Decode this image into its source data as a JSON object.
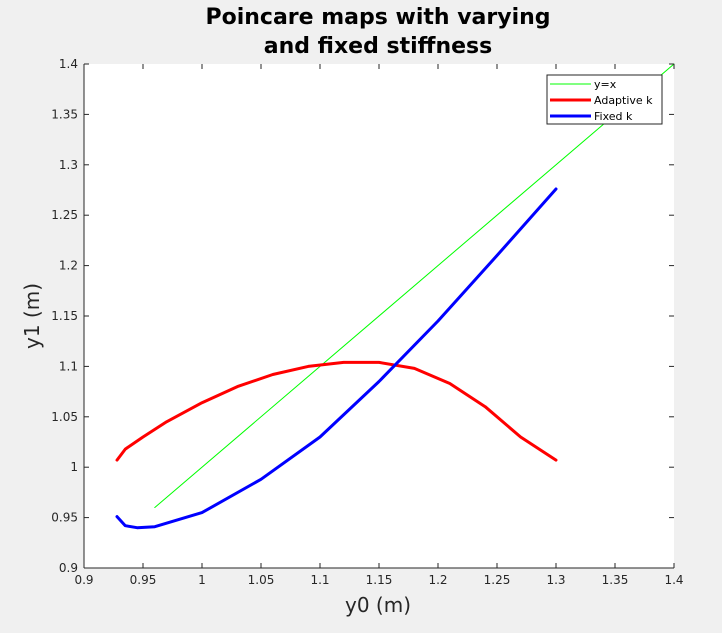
{
  "chart_data": {
    "type": "line",
    "title": [
      "Poincare maps with varying",
      "and fixed stiffness"
    ],
    "xlabel": "y0 (m)",
    "ylabel": "y1 (m)",
    "xlim": [
      0.9,
      1.4
    ],
    "ylim": [
      0.9,
      1.4
    ],
    "xticks": [
      0.9,
      0.95,
      1.0,
      1.05,
      1.1,
      1.15,
      1.2,
      1.25,
      1.3,
      1.35,
      1.4
    ],
    "xtick_labels": [
      "0.9",
      "0.95",
      "1",
      "1.05",
      "1.1",
      "1.15",
      "1.2",
      "1.25",
      "1.3",
      "1.35",
      "1.4"
    ],
    "yticks": [
      0.9,
      0.95,
      1.0,
      1.05,
      1.1,
      1.15,
      1.2,
      1.25,
      1.3,
      1.35,
      1.4
    ],
    "ytick_labels": [
      "0.9",
      "0.95",
      "1",
      "1.05",
      "1.1",
      "1.15",
      "1.2",
      "1.25",
      "1.3",
      "1.35",
      "1.4"
    ],
    "grid": false,
    "legend_position": "top-right",
    "series": [
      {
        "name": "y=x",
        "color": "#00ff00",
        "x": [
          0.96,
          1.4
        ],
        "y": [
          0.96,
          1.4
        ]
      },
      {
        "name": "Adaptive k",
        "color": "#ff0000",
        "x": [
          0.928,
          0.935,
          0.95,
          0.97,
          1.0,
          1.03,
          1.06,
          1.09,
          1.12,
          1.15,
          1.18,
          1.21,
          1.24,
          1.27,
          1.3
        ],
        "y": [
          1.007,
          1.018,
          1.03,
          1.045,
          1.064,
          1.08,
          1.092,
          1.1,
          1.104,
          1.104,
          1.098,
          1.083,
          1.06,
          1.03,
          1.007
        ]
      },
      {
        "name": "Fixed k",
        "color": "#0000ff",
        "x": [
          0.928,
          0.935,
          0.945,
          0.96,
          1.0,
          1.05,
          1.1,
          1.15,
          1.2,
          1.25,
          1.3
        ],
        "y": [
          0.951,
          0.942,
          0.94,
          0.941,
          0.955,
          0.988,
          1.03,
          1.085,
          1.145,
          1.21,
          1.276
        ]
      }
    ]
  }
}
